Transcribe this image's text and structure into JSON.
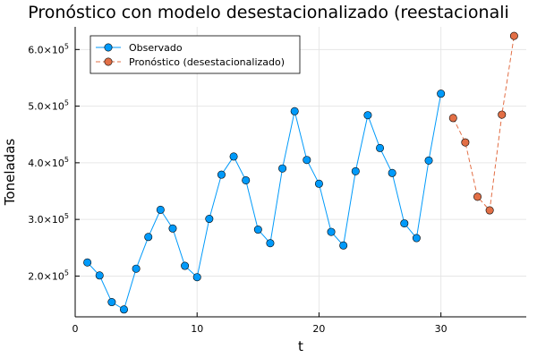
{
  "chart_data": {
    "type": "line",
    "title": "Pronóstico con modelo desestacionalizado (reestacionali",
    "xlabel": "t",
    "ylabel": "Toneladas",
    "xlim": [
      0,
      37
    ],
    "ylim": [
      128000,
      640000
    ],
    "x_ticks": [
      0,
      10,
      20,
      30
    ],
    "x_tick_labels": [
      "0",
      "10",
      "20",
      "30"
    ],
    "y_ticks": [
      200000,
      300000,
      400000,
      500000,
      600000
    ],
    "y_tick_mantissas": [
      "2.0×10",
      "3.0×10",
      "4.0×10",
      "5.0×10",
      "6.0×10"
    ],
    "y_tick_exponents": [
      "5",
      "5",
      "5",
      "5",
      "5"
    ],
    "grid": true,
    "legend_position": "top-left",
    "series": [
      {
        "name": "Observado",
        "color": "#009AFA",
        "line_style": "solid",
        "x": [
          1,
          2,
          3,
          4,
          5,
          6,
          7,
          8,
          9,
          10,
          11,
          12,
          13,
          14,
          15,
          16,
          17,
          18,
          19,
          20,
          21,
          22,
          23,
          24,
          25,
          26,
          27,
          28,
          29,
          30
        ],
        "values": [
          224000,
          201000,
          154000,
          141000,
          213000,
          269000,
          317000,
          284000,
          218000,
          198000,
          301000,
          379000,
          411000,
          369000,
          282000,
          258000,
          390000,
          491000,
          405000,
          363000,
          278000,
          254000,
          385000,
          484000,
          426000,
          382000,
          293000,
          267000,
          404000,
          522000
        ]
      },
      {
        "name": "Pronóstico (desestacionalizado)",
        "color": "#E26F46",
        "line_style": "dashed",
        "x": [
          31,
          32,
          33,
          34,
          35,
          36
        ],
        "values": [
          479000,
          436000,
          340000,
          316000,
          485000,
          624000
        ]
      }
    ]
  }
}
